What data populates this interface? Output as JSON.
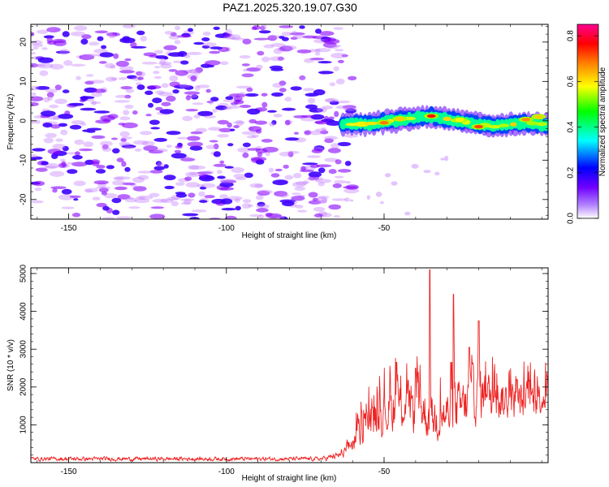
{
  "figure": {
    "title": "PAZ1.2025.320.19.07.G30"
  },
  "chart_data": [
    {
      "type": "heatmap",
      "title": "PAZ1.2025.320.19.07.G30",
      "xlabel": "Height of straight line (km)",
      "ylabel": "Frequency (Hz)",
      "xlim": [
        -162,
        2
      ],
      "ylim": [
        -25,
        24.5
      ],
      "x_ticks": [
        -150,
        -100,
        -50
      ],
      "x_tick_labels": [
        "-150",
        "-100",
        "-50"
      ],
      "y_ticks": [
        20,
        10,
        0,
        -10,
        -20
      ],
      "y_tick_labels": [
        "20",
        "10",
        "0",
        "-10",
        "-20"
      ],
      "colorbar": {
        "label": "Normalized spectral amplitude",
        "range": [
          0,
          0.85
        ],
        "ticks": [
          0.0,
          0.2,
          0.4,
          0.6,
          0.8
        ],
        "tick_labels": [
          "0.0",
          "0.2",
          "0.4",
          "0.6",
          "0.8"
        ],
        "colors": [
          "#ffffff",
          "#8a00ff",
          "#0000ff",
          "#00ffff",
          "#00ff00",
          "#ffff00",
          "#ff8000",
          "#ff0000",
          "#ff00a0"
        ]
      },
      "noise_region": {
        "x_range": [
          -162,
          -60
        ],
        "freq_range": [
          -25,
          24
        ],
        "typical_amplitude": 0.1
      },
      "signal_band": {
        "x_range": [
          -63,
          2
        ],
        "center_freq": [
          {
            "x": -63,
            "f": -1.0
          },
          {
            "x": -55,
            "f": -0.8
          },
          {
            "x": -45,
            "f": 0.3
          },
          {
            "x": -35,
            "f": 1.2
          },
          {
            "x": -25,
            "f": -0.2
          },
          {
            "x": -15,
            "f": -1.5
          },
          {
            "x": -5,
            "f": -0.5
          },
          {
            "x": 2,
            "f": -1.0
          }
        ],
        "peaks": [
          {
            "x": -50,
            "f": -0.5,
            "amplitude": 0.62
          },
          {
            "x": -45,
            "f": 0.5,
            "amplitude": 0.55
          },
          {
            "x": -35,
            "f": 1.2,
            "amplitude": 0.7
          },
          {
            "x": -26,
            "f": 0.2,
            "amplitude": 0.52
          },
          {
            "x": -20,
            "f": -1.5,
            "amplitude": 0.66
          },
          {
            "x": -5,
            "f": 0.3,
            "amplitude": 0.6
          },
          {
            "x": -1,
            "f": 1.0,
            "amplitude": 0.55
          }
        ]
      }
    },
    {
      "type": "line",
      "xlabel": "Height of straight line (km)",
      "ylabel": "SNR (10 * v/v)",
      "xlim": [
        -162,
        2
      ],
      "ylim": [
        0,
        5150
      ],
      "x_ticks": [
        -150,
        -100,
        -50
      ],
      "x_tick_labels": [
        "-150",
        "-100",
        "-50"
      ],
      "y_ticks": [
        1000,
        2000,
        3000,
        4000,
        5000
      ],
      "y_tick_labels": [
        "1000",
        "2000",
        "3000",
        "4000",
        "5000"
      ],
      "series": [
        {
          "name": "SNR",
          "color": "#ee2222",
          "envelope": [
            {
              "x": -162,
              "low": 20,
              "high": 180
            },
            {
              "x": -70,
              "low": 20,
              "high": 180
            },
            {
              "x": -64,
              "low": 40,
              "high": 350
            },
            {
              "x": -60,
              "low": 150,
              "high": 900
            },
            {
              "x": -56,
              "low": 300,
              "high": 1600
            },
            {
              "x": -50,
              "low": 500,
              "high": 2100
            },
            {
              "x": -44,
              "low": 600,
              "high": 2500
            },
            {
              "x": -38,
              "low": 400,
              "high": 2300
            },
            {
              "x": -34,
              "low": 300,
              "high": 2000
            },
            {
              "x": -28,
              "low": 400,
              "high": 2300
            },
            {
              "x": -20,
              "low": 800,
              "high": 2800
            },
            {
              "x": -12,
              "low": 900,
              "high": 2400
            },
            {
              "x": -4,
              "low": 900,
              "high": 2300
            },
            {
              "x": 2,
              "low": 1200,
              "high": 2400
            }
          ],
          "spikes": [
            {
              "x": -35.5,
              "value": 5100
            },
            {
              "x": -28,
              "value": 4450
            },
            {
              "x": -20,
              "value": 3750
            },
            {
              "x": -23,
              "value": 3050
            },
            {
              "x": -46,
              "value": 2650
            },
            {
              "x": -40,
              "value": 2500
            }
          ]
        }
      ]
    }
  ]
}
